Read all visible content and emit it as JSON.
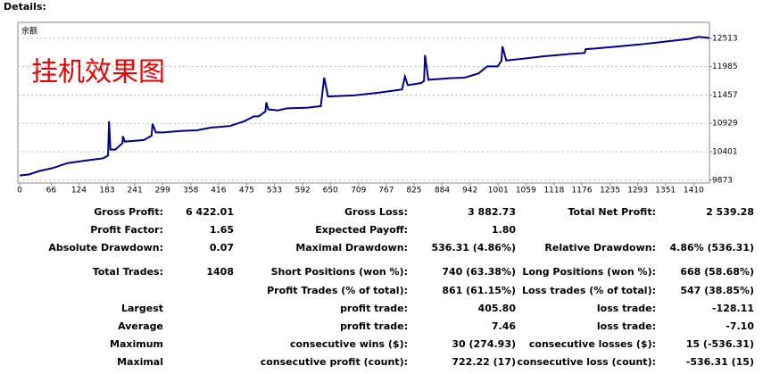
{
  "header": {
    "title": "Details:"
  },
  "chart_data": {
    "type": "line",
    "annotations": [
      "余额",
      "挂机效果图"
    ],
    "x": [
      0,
      20,
      40,
      70,
      100,
      140,
      175,
      185,
      187,
      190,
      200,
      215,
      216,
      220,
      260,
      276,
      278,
      285,
      300,
      340,
      370,
      400,
      440,
      470,
      490,
      500,
      514,
      516,
      520,
      540,
      560,
      600,
      630,
      637,
      645,
      700,
      750,
      800,
      806,
      812,
      840,
      846,
      848,
      855,
      900,
      931,
      960,
      978,
      1000,
      1008,
      1010,
      1018,
      1050,
      1100,
      1150,
      1182,
      1184,
      1200,
      1250,
      1300,
      1350,
      1400,
      1420,
      1443
    ],
    "series": [
      {
        "name": "余额",
        "color": "#00008b",
        "values": [
          9960,
          9980,
          10040,
          10100,
          10190,
          10240,
          10280,
          10330,
          10969,
          10440,
          10440,
          10560,
          10690,
          10590,
          10620,
          10700,
          10920,
          10760,
          10760,
          10790,
          10800,
          10850,
          10880,
          10970,
          11060,
          11060,
          11150,
          11320,
          11190,
          11170,
          11210,
          11220,
          11250,
          11780,
          11430,
          11450,
          11500,
          11560,
          11800,
          11640,
          11680,
          11720,
          12200,
          11740,
          11770,
          11780,
          11860,
          11990,
          11990,
          12100,
          12360,
          12100,
          12130,
          12180,
          12220,
          12240,
          12310,
          12320,
          12360,
          12400,
          12450,
          12500,
          12540,
          12520
        ]
      }
    ],
    "xlim": [
      0,
      1443
    ],
    "xticks": [
      0,
      66,
      124,
      183,
      241,
      299,
      358,
      416,
      475,
      533,
      592,
      650,
      709,
      767,
      825,
      884,
      942,
      1001,
      1059,
      1118,
      1176,
      1235,
      1293,
      1351,
      1410
    ],
    "ylim": [
      9820,
      12810
    ],
    "yticks": [
      9873,
      10401,
      10929,
      11457,
      11985,
      12513
    ],
    "grid": true
  },
  "report": {
    "rows": [
      [
        {
          "label": "Gross Profit:",
          "value": "6 422.01"
        },
        {
          "label": "Gross Loss:",
          "value": "3 882.73"
        },
        {
          "label": "Total Net Profit:",
          "value": "2 539.28"
        }
      ],
      [
        {
          "label": "Profit Factor:",
          "value": "1.65"
        },
        {
          "label": "Expected Payoff:",
          "value": "1.80"
        },
        null
      ],
      [
        {
          "label": "Absolute Drawdown:",
          "value": "0.07"
        },
        {
          "label": "Maximal Drawdown:",
          "value": "536.31 (4.86%)"
        },
        {
          "label": "Relative Drawdown:",
          "value": "4.86% (536.31)"
        }
      ],
      [
        {
          "label": "Total Trades:",
          "value": "1408"
        },
        {
          "label": "Short Positions (won %):",
          "value": "740 (63.38%)"
        },
        {
          "label": "Long Positions (won %):",
          "value": "668 (58.68%)"
        }
      ],
      [
        null,
        {
          "label": "Profit Trades (% of total):",
          "value": "861 (61.15%)"
        },
        {
          "label": "Loss trades (% of total):",
          "value": "547 (38.85%)"
        }
      ],
      [
        {
          "label": "Largest"
        },
        {
          "label": "profit trade:",
          "value": "405.80"
        },
        {
          "label": "loss trade:",
          "value": "-128.11"
        }
      ],
      [
        {
          "label": "Average"
        },
        {
          "label": "profit trade:",
          "value": "7.46"
        },
        {
          "label": "loss trade:",
          "value": "-7.10"
        }
      ],
      [
        {
          "label": "Maximum"
        },
        {
          "label": "consecutive wins ($):",
          "value": "30 (274.93)"
        },
        {
          "label": "consecutive losses ($):",
          "value": "15 (-536.31)"
        }
      ],
      [
        {
          "label": "Maximal"
        },
        {
          "label": "consecutive profit (count):",
          "value": "722.22 (17)"
        },
        {
          "label": "consecutive loss (count):",
          "value": "-536.31 (15)"
        }
      ]
    ]
  }
}
